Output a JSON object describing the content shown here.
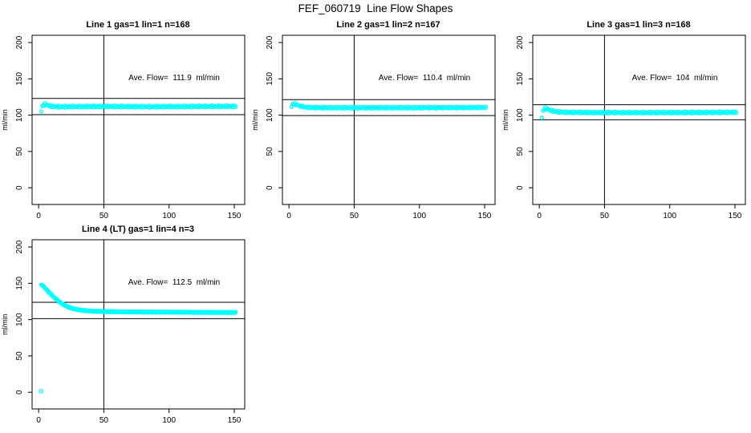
{
  "page_title": "FEF_060719  Line Flow Shapes",
  "colors": {
    "marker": "#00FFFF",
    "axis": "#000000",
    "background": "#FFFFFF",
    "text": "#000000"
  },
  "chart_data": [
    {
      "type": "scatter",
      "title": "Line 1 gas=1 lin=1 n=168",
      "annotation": "Ave. Flow=  111.9  ml/min",
      "ave_flow": 111.9,
      "n": 168,
      "ylabel": "ml/min",
      "xlabel": "",
      "x_ticks": [
        0,
        50,
        100,
        150
      ],
      "y_ticks": [
        0,
        50,
        100,
        150,
        200
      ],
      "xlim": [
        -5,
        158
      ],
      "ylim": [
        -23,
        210
      ],
      "vline_x": 50,
      "ref_lines": [
        123.1,
        100.7
      ],
      "marker_color": "#00FFFF",
      "n_markers": 168,
      "band_jitter": 1.3,
      "series_x_range": [
        2,
        151
      ],
      "shape_points": [
        [
          2,
          105
        ],
        [
          2.7,
          111
        ],
        [
          3.5,
          114.8
        ],
        [
          5,
          115.2
        ],
        [
          7,
          113.5
        ],
        [
          10,
          112.2
        ],
        [
          15,
          111.6
        ],
        [
          25,
          111.8
        ],
        [
          50,
          112
        ],
        [
          90,
          111.7
        ],
        [
          120,
          112
        ],
        [
          151,
          112.2
        ]
      ],
      "extra_points": []
    },
    {
      "type": "scatter",
      "title": "Line 2 gas=1 lin=2 n=167",
      "annotation": "Ave. Flow=  110.4  ml/min",
      "ave_flow": 110.4,
      "n": 167,
      "ylabel": "ml/min",
      "xlabel": "",
      "x_ticks": [
        0,
        50,
        100,
        150
      ],
      "y_ticks": [
        0,
        50,
        100,
        150,
        200
      ],
      "xlim": [
        -5,
        158
      ],
      "ylim": [
        -23,
        210
      ],
      "vline_x": 50,
      "ref_lines": [
        121.4,
        99.4
      ],
      "marker_color": "#00FFFF",
      "n_markers": 167,
      "band_jitter": 1.2,
      "series_x_range": [
        2,
        151
      ],
      "shape_points": [
        [
          2,
          111.5
        ],
        [
          3,
          115
        ],
        [
          4.5,
          116
        ],
        [
          6.5,
          114
        ],
        [
          9,
          112.3
        ],
        [
          13,
          111
        ],
        [
          20,
          110.4
        ],
        [
          40,
          110.2
        ],
        [
          80,
          110.2
        ],
        [
          120,
          110.4
        ],
        [
          151,
          110.6
        ]
      ],
      "extra_points": []
    },
    {
      "type": "scatter",
      "title": "Line 3 gas=1 lin=3 n=168",
      "annotation": "Ave. Flow=  104  ml/min",
      "ave_flow": 104,
      "n": 168,
      "ylabel": "ml/min",
      "xlabel": "",
      "x_ticks": [
        0,
        50,
        100,
        150
      ],
      "y_ticks": [
        0,
        50,
        100,
        150,
        200
      ],
      "xlim": [
        -5,
        158
      ],
      "ylim": [
        -23,
        210
      ],
      "vline_x": 50,
      "ref_lines": [
        114.4,
        93.6
      ],
      "marker_color": "#00FFFF",
      "n_markers": 168,
      "band_jitter": 1.2,
      "series_x_range": [
        2,
        151
      ],
      "shape_points": [
        [
          2,
          96.5
        ],
        [
          2.6,
          103
        ],
        [
          3.2,
          108
        ],
        [
          4.5,
          110
        ],
        [
          6.5,
          108.2
        ],
        [
          9,
          106.2
        ],
        [
          13,
          104.8
        ],
        [
          20,
          104
        ],
        [
          40,
          103.6
        ],
        [
          80,
          103.5
        ],
        [
          120,
          103.7
        ],
        [
          151,
          104
        ]
      ],
      "extra_points": []
    },
    {
      "type": "scatter",
      "title": "Line 4 (LT) gas=1 lin=4 n=3",
      "annotation": "Ave. Flow=  112.5  ml/min",
      "ave_flow": 112.5,
      "n": 3,
      "ylabel": "ml/min",
      "xlabel": "",
      "x_ticks": [
        0,
        50,
        100,
        150
      ],
      "y_ticks": [
        0,
        50,
        100,
        150,
        200
      ],
      "xlim": [
        -5,
        158
      ],
      "ylim": [
        -23,
        210
      ],
      "vline_x": 50,
      "ref_lines": [
        123.8,
        101.3
      ],
      "marker_color": "#00FFFF",
      "n_markers": 280,
      "band_jitter": 0.7,
      "series_x_range": [
        2,
        151
      ],
      "shape_points": [
        [
          2,
          148
        ],
        [
          3.2,
          147
        ],
        [
          4.5,
          144.5
        ],
        [
          6,
          141.5
        ],
        [
          8,
          137.5
        ],
        [
          10,
          134
        ],
        [
          12,
          130.5
        ],
        [
          14,
          127.5
        ],
        [
          16,
          124.5
        ],
        [
          18,
          122
        ],
        [
          20,
          119.8
        ],
        [
          23,
          117.2
        ],
        [
          26,
          115.3
        ],
        [
          30,
          113.8
        ],
        [
          35,
          112.5
        ],
        [
          42,
          111.6
        ],
        [
          52,
          111
        ],
        [
          70,
          110.6
        ],
        [
          100,
          110.3
        ],
        [
          130,
          110
        ],
        [
          151,
          109.9
        ]
      ],
      "extra_points": [
        [
          2,
          1.5
        ]
      ]
    }
  ]
}
